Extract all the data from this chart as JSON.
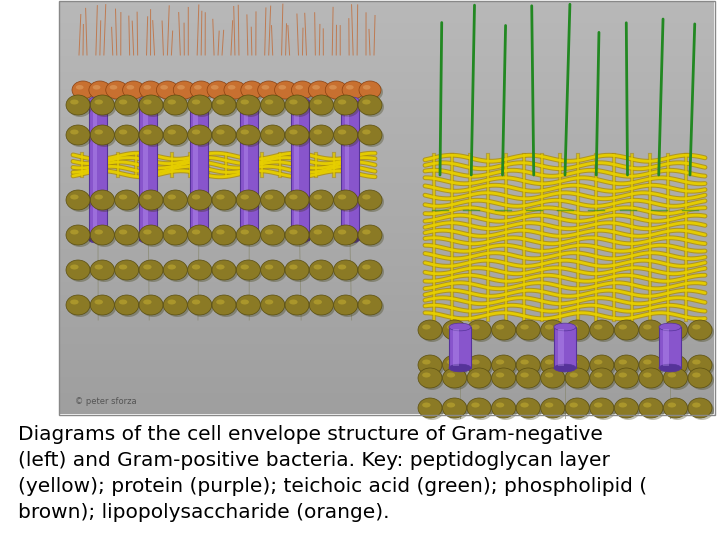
{
  "background_color": "#c8c8c8",
  "fig_bg": "#bebebe",
  "caption_lines": [
    "Diagrams of the cell envelope structure of Gram-negative",
    "(left) and Gram-positive bacteria. Key: peptidoglycan layer",
    "(yellow); protein (purple); teichoic acid (green); phospholipid (",
    "brown); lipopolysaccharide (orange)."
  ],
  "caption_fontsize": 14.5,
  "caption_color": "#000000",
  "pg_yellow": "#e8d000",
  "pg_dark": "#b09000",
  "lps_orange": "#c87030",
  "lps_light": "#e08840",
  "protein_purple": "#8855cc",
  "protein_dark": "#553399",
  "lipid_olive": "#8b7a25",
  "lipid_dark": "#5a4e10",
  "lipid_light": "#b0a040",
  "teichoic_green": "#228822",
  "gray_bg": "#b0b0b0"
}
